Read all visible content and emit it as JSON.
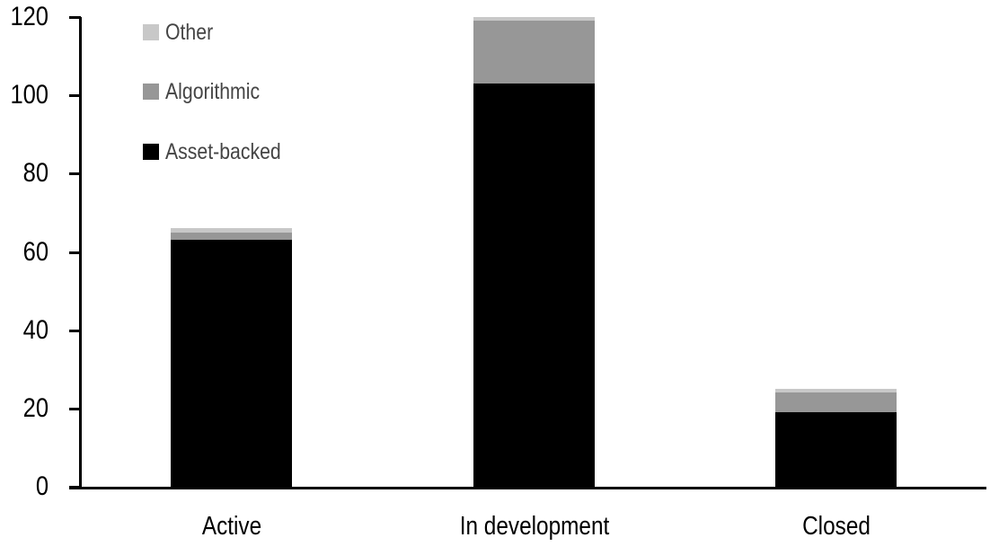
{
  "chart_data": {
    "type": "bar",
    "stacked": true,
    "title": "",
    "xlabel": "",
    "ylabel": "",
    "categories": [
      "Active",
      "In development",
      "Closed"
    ],
    "series": [
      {
        "name": "Asset-backed",
        "color": "#000000",
        "values": [
          63,
          103,
          19
        ]
      },
      {
        "name": "Algorithmic",
        "color": "#979797",
        "values": [
          2,
          16,
          5
        ]
      },
      {
        "name": "Other",
        "color": "#c8c8c8",
        "values": [
          1,
          1,
          1
        ]
      }
    ],
    "totals": [
      66,
      120,
      25
    ],
    "yticks": [
      0,
      20,
      40,
      60,
      80,
      100,
      120
    ],
    "ylim": [
      0,
      120
    ],
    "grid": false,
    "legend_position": "top-left",
    "legend_order": [
      "Other",
      "Algorithmic",
      "Asset-backed"
    ]
  },
  "style": {
    "axis_color": "#000000",
    "tick_label_color": "#000000",
    "category_label_color": "#000000",
    "legend_text_color": "#454545",
    "background": "#ffffff"
  }
}
